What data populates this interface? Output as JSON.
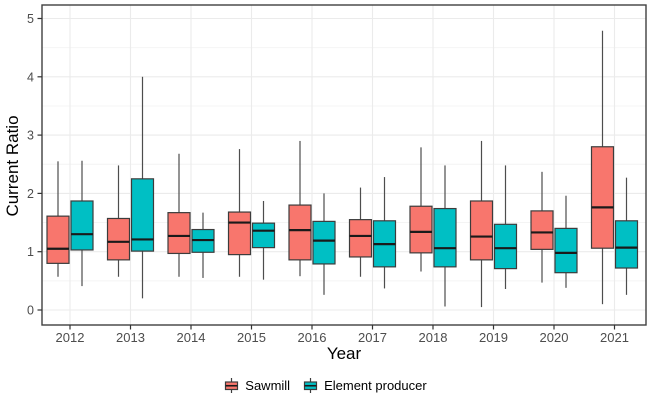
{
  "figure": {
    "background": "#FFFFFF"
  },
  "chart_data": {
    "type": "boxplot",
    "title": "",
    "xlabel": "Year",
    "ylabel": "Current Ratio",
    "ylim": [
      0,
      5
    ],
    "yticks": [
      0,
      1,
      2,
      3,
      4,
      5
    ],
    "categories": [
      "2012",
      "2013",
      "2014",
      "2015",
      "2016",
      "2017",
      "2018",
      "2019",
      "2020",
      "2021"
    ],
    "grid": {
      "major": true,
      "minor": true
    },
    "legend_position": "bottom",
    "series": [
      {
        "name": "Sawmill",
        "color": "#F8766D",
        "boxes": [
          {
            "low": 0.57,
            "q1": 0.8,
            "median": 1.05,
            "q3": 1.61,
            "high": 2.55
          },
          {
            "low": 0.57,
            "q1": 0.86,
            "median": 1.17,
            "q3": 1.57,
            "high": 2.48
          },
          {
            "low": 0.57,
            "q1": 0.97,
            "median": 1.27,
            "q3": 1.67,
            "high": 2.68
          },
          {
            "low": 0.57,
            "q1": 0.95,
            "median": 1.5,
            "q3": 1.68,
            "high": 2.76
          },
          {
            "low": 0.58,
            "q1": 0.86,
            "median": 1.37,
            "q3": 1.8,
            "high": 2.9
          },
          {
            "low": 0.57,
            "q1": 0.91,
            "median": 1.27,
            "q3": 1.55,
            "high": 2.1
          },
          {
            "low": 0.66,
            "q1": 0.98,
            "median": 1.34,
            "q3": 1.78,
            "high": 2.79
          },
          {
            "low": 0.05,
            "q1": 0.86,
            "median": 1.26,
            "q3": 1.87,
            "high": 2.9
          },
          {
            "low": 0.47,
            "q1": 1.04,
            "median": 1.33,
            "q3": 1.7,
            "high": 2.37
          },
          {
            "low": 0.1,
            "q1": 1.06,
            "median": 1.76,
            "q3": 2.8,
            "high": 4.79
          }
        ]
      },
      {
        "name": "Element producer",
        "color": "#00BFC4",
        "boxes": [
          {
            "low": 0.41,
            "q1": 1.03,
            "median": 1.3,
            "q3": 1.87,
            "high": 2.56
          },
          {
            "low": 0.2,
            "q1": 1.01,
            "median": 1.21,
            "q3": 2.25,
            "high": 4.0
          },
          {
            "low": 0.55,
            "q1": 0.99,
            "median": 1.2,
            "q3": 1.38,
            "high": 1.67
          },
          {
            "low": 0.52,
            "q1": 1.07,
            "median": 1.36,
            "q3": 1.49,
            "high": 1.87
          },
          {
            "low": 0.26,
            "q1": 0.79,
            "median": 1.19,
            "q3": 1.52,
            "high": 2.0
          },
          {
            "low": 0.37,
            "q1": 0.74,
            "median": 1.13,
            "q3": 1.53,
            "high": 2.28
          },
          {
            "low": 0.06,
            "q1": 0.74,
            "median": 1.06,
            "q3": 1.74,
            "high": 2.48
          },
          {
            "low": 0.36,
            "q1": 0.71,
            "median": 1.06,
            "q3": 1.47,
            "high": 2.48
          },
          {
            "low": 0.38,
            "q1": 0.64,
            "median": 0.98,
            "q3": 1.4,
            "high": 1.96
          },
          {
            "low": 0.26,
            "q1": 0.72,
            "median": 1.07,
            "q3": 1.53,
            "high": 2.27
          }
        ]
      }
    ],
    "colors": {
      "box_border": "#3C3C3C",
      "median": "#1A1A1A",
      "whisker": "#4D4D4D",
      "grid_major": "#EBEBEB",
      "grid_minor": "#F4F4F4",
      "panel_border": "#404040",
      "axis_text": "#4D4D4D",
      "axis_title": "#000000",
      "tick_mark": "#333333"
    }
  }
}
